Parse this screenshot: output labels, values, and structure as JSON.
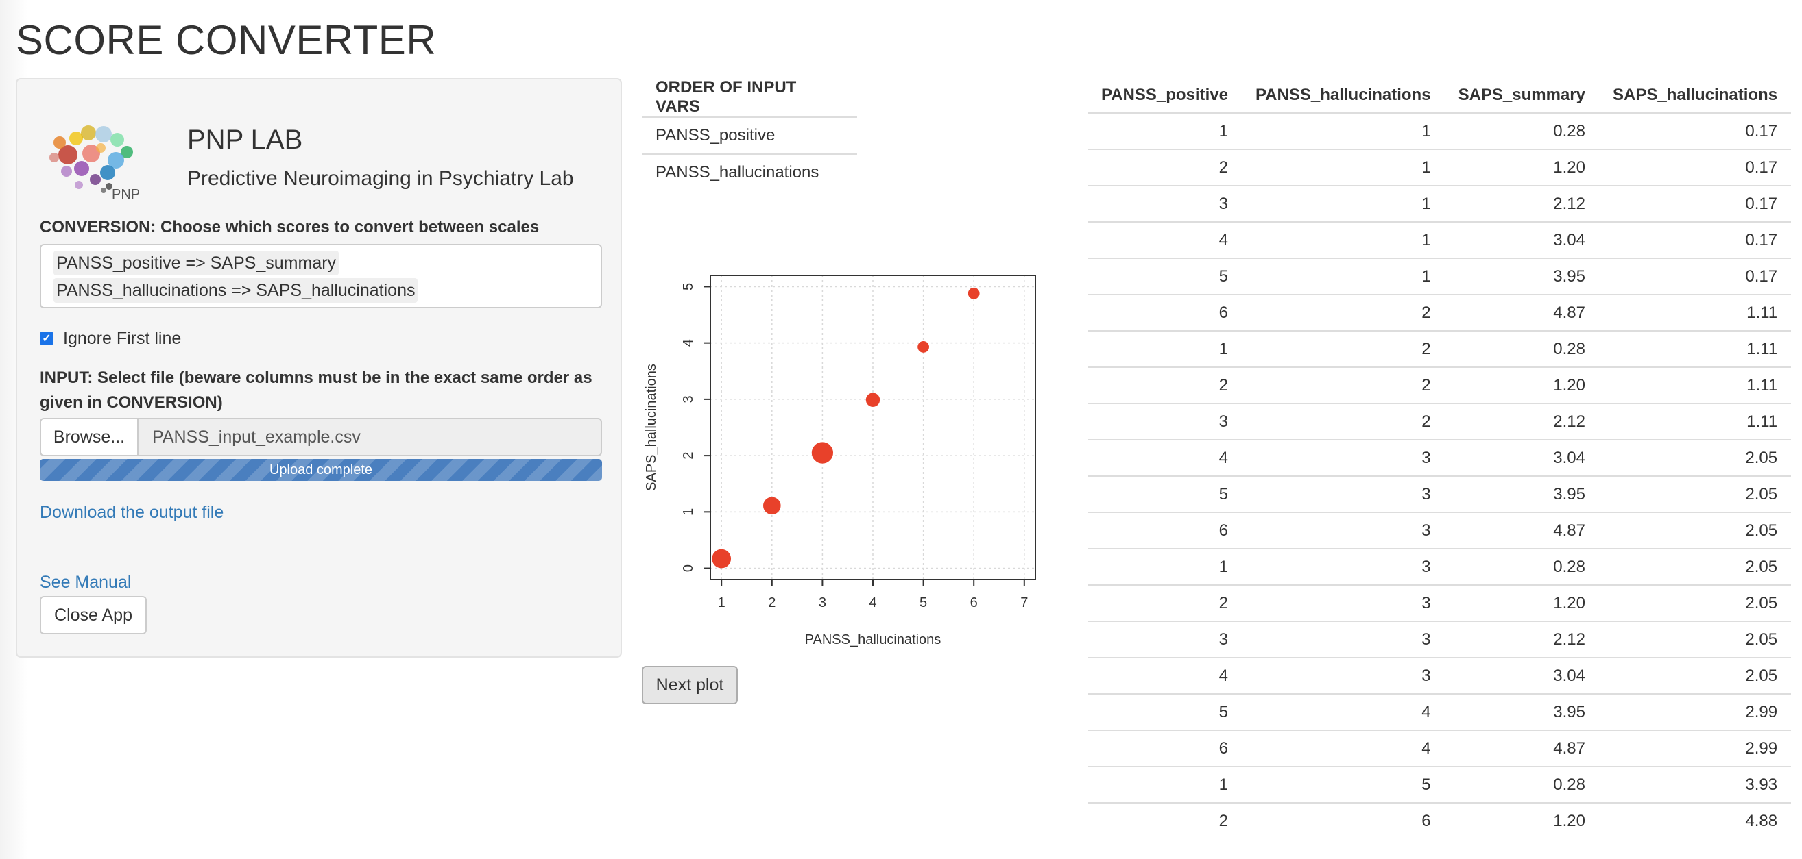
{
  "page": {
    "title": "SCORE CONVERTER"
  },
  "sidebar": {
    "lab_name": "PNP LAB",
    "lab_subtitle": "Predictive Neuroimaging in Psychiatry Lab",
    "logo_text": "PNP",
    "conversion_label": "CONVERSION: Choose which scores to convert between scales",
    "conversion_selected": [
      "PANSS_positive => SAPS_summary",
      "PANSS_hallucinations => SAPS_hallucinations"
    ],
    "ignore_first_line": {
      "label": "Ignore First line",
      "checked": true
    },
    "input_label": "INPUT: Select file (beware columns must be in the exact same order as given in CONVERSION)",
    "browse_label": "Browse...",
    "file_name": "PANSS_input_example.csv",
    "upload_status": "Upload complete",
    "upload_progress": 1.0,
    "download_link": "Download the output file",
    "manual_link": "See Manual",
    "close_label": "Close App"
  },
  "order_table": {
    "header": "ORDER OF INPUT VARS",
    "rows": [
      "PANSS_positive",
      "PANSS_hallucinations"
    ]
  },
  "chart_data": {
    "type": "scatter",
    "xlabel": "PANSS_hallucinations",
    "ylabel": "SAPS_hallucinations",
    "xlim": [
      1,
      7
    ],
    "ylim": [
      0,
      5
    ],
    "xticks": [
      1,
      2,
      3,
      4,
      5,
      6,
      7
    ],
    "yticks": [
      0,
      1,
      2,
      3,
      4,
      5
    ],
    "grid": true,
    "point_color": "#e8412a",
    "points": [
      {
        "x": 1,
        "y": 0.17,
        "count": 5
      },
      {
        "x": 2,
        "y": 1.11,
        "count": 4
      },
      {
        "x": 3,
        "y": 2.05,
        "count": 7
      },
      {
        "x": 4,
        "y": 2.99,
        "count": 2
      },
      {
        "x": 5,
        "y": 3.93,
        "count": 1
      },
      {
        "x": 6,
        "y": 4.88,
        "count": 1
      }
    ]
  },
  "next_plot_label": "Next plot",
  "data_table": {
    "columns": [
      "PANSS_positive",
      "PANSS_hallucinations",
      "SAPS_summary",
      "SAPS_hallucinations"
    ],
    "rows": [
      [
        "1",
        "1",
        "0.28",
        "0.17"
      ],
      [
        "2",
        "1",
        "1.20",
        "0.17"
      ],
      [
        "3",
        "1",
        "2.12",
        "0.17"
      ],
      [
        "4",
        "1",
        "3.04",
        "0.17"
      ],
      [
        "5",
        "1",
        "3.95",
        "0.17"
      ],
      [
        "6",
        "2",
        "4.87",
        "1.11"
      ],
      [
        "1",
        "2",
        "0.28",
        "1.11"
      ],
      [
        "2",
        "2",
        "1.20",
        "1.11"
      ],
      [
        "3",
        "2",
        "2.12",
        "1.11"
      ],
      [
        "4",
        "3",
        "3.04",
        "2.05"
      ],
      [
        "5",
        "3",
        "3.95",
        "2.05"
      ],
      [
        "6",
        "3",
        "4.87",
        "2.05"
      ],
      [
        "1",
        "3",
        "0.28",
        "2.05"
      ],
      [
        "2",
        "3",
        "1.20",
        "2.05"
      ],
      [
        "3",
        "3",
        "2.12",
        "2.05"
      ],
      [
        "4",
        "3",
        "3.04",
        "2.05"
      ],
      [
        "5",
        "4",
        "3.95",
        "2.99"
      ],
      [
        "6",
        "4",
        "4.87",
        "2.99"
      ],
      [
        "1",
        "5",
        "0.28",
        "3.93"
      ],
      [
        "2",
        "6",
        "1.20",
        "4.88"
      ]
    ]
  }
}
